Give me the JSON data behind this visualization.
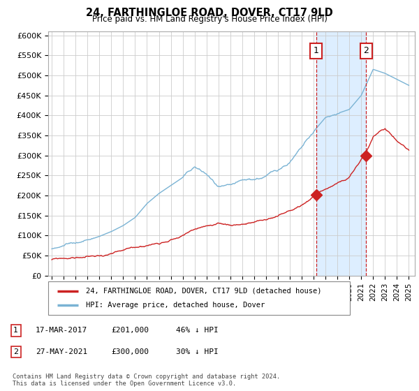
{
  "title": "24, FARTHINGLOE ROAD, DOVER, CT17 9LD",
  "subtitle": "Price paid vs. HM Land Registry's House Price Index (HPI)",
  "ylabel_ticks": [
    "£0",
    "£50K",
    "£100K",
    "£150K",
    "£200K",
    "£250K",
    "£300K",
    "£350K",
    "£400K",
    "£450K",
    "£500K",
    "£550K",
    "£600K"
  ],
  "ytick_values": [
    0,
    50000,
    100000,
    150000,
    200000,
    250000,
    300000,
    350000,
    400000,
    450000,
    500000,
    550000,
    600000
  ],
  "ylim": [
    0,
    610000
  ],
  "xlim_start": 1994.7,
  "xlim_end": 2025.5,
  "hpi_color": "#7ab3d4",
  "price_color": "#cc2222",
  "shade_color": "#ddeeff",
  "dashed_vline_color": "#cc2222",
  "marker1_x": 2017.21,
  "marker1_y": 201000,
  "marker2_x": 2021.41,
  "marker2_y": 300000,
  "annotation1": "17-MAR-2017",
  "annotation1_price": "£201,000",
  "annotation1_hpi": "46% ↓ HPI",
  "annotation2": "27-MAY-2021",
  "annotation2_price": "£300,000",
  "annotation2_hpi": "30% ↓ HPI",
  "legend_label_red": "24, FARTHINGLOE ROAD, DOVER, CT17 9LD (detached house)",
  "legend_label_blue": "HPI: Average price, detached house, Dover",
  "footnote": "Contains HM Land Registry data © Crown copyright and database right 2024.\nThis data is licensed under the Open Government Licence v3.0.",
  "box1_label": "1",
  "box2_label": "2",
  "xticks": [
    1995,
    1996,
    1997,
    1998,
    1999,
    2000,
    2001,
    2002,
    2003,
    2004,
    2005,
    2006,
    2007,
    2008,
    2009,
    2010,
    2011,
    2012,
    2013,
    2014,
    2015,
    2016,
    2017,
    2018,
    2019,
    2020,
    2021,
    2022,
    2023,
    2024,
    2025
  ],
  "hpi_anchors_x": [
    1995,
    1996,
    1997,
    1998,
    1999,
    2000,
    2001,
    2002,
    2003,
    2004,
    2005,
    2006,
    2007,
    2008,
    2009,
    2010,
    2011,
    2012,
    2013,
    2014,
    2015,
    2016,
    2017,
    2018,
    2019,
    2020,
    2021,
    2022,
    2023,
    2024,
    2025
  ],
  "hpi_anchors_y": [
    82000,
    88000,
    95000,
    103000,
    113000,
    125000,
    140000,
    160000,
    195000,
    220000,
    240000,
    260000,
    285000,
    265000,
    230000,
    225000,
    232000,
    235000,
    242000,
    258000,
    278000,
    310000,
    345000,
    380000,
    390000,
    400000,
    435000,
    500000,
    490000,
    475000,
    460000
  ],
  "price_anchors_x": [
    1995,
    1996,
    1997,
    1998,
    1999,
    2000,
    2001,
    2002,
    2003,
    2004,
    2005,
    2006,
    2007,
    2008,
    2009,
    2010,
    2011,
    2012,
    2013,
    2014,
    2015,
    2016,
    2017.21,
    2018,
    2019,
    2020,
    2021.41,
    2022,
    2023,
    2024,
    2025
  ],
  "price_anchors_y": [
    48000,
    50000,
    52000,
    54000,
    56000,
    60000,
    63000,
    68000,
    75000,
    82000,
    95000,
    105000,
    120000,
    130000,
    128000,
    125000,
    130000,
    133000,
    138000,
    148000,
    158000,
    172000,
    201000,
    215000,
    228000,
    240000,
    300000,
    340000,
    360000,
    330000,
    310000
  ]
}
